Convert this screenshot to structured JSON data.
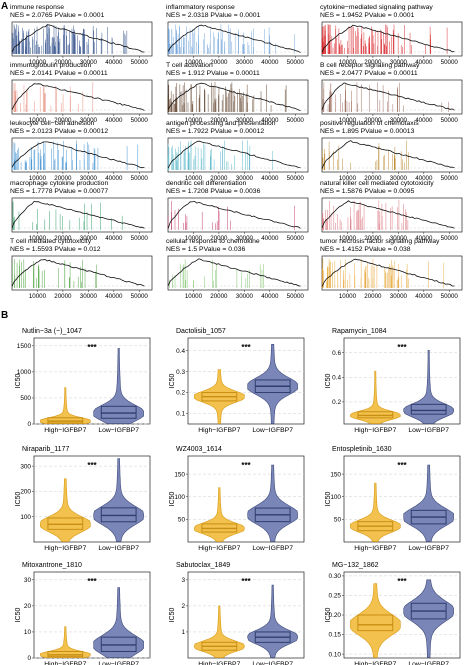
{
  "figure": {
    "panel_a_label": "A",
    "panel_b_label": "B",
    "colors": {
      "curve": "#111111",
      "frame": "#222222",
      "grid": "#cfcfcf",
      "high": "#f2c14e",
      "high_dark": "#d99a16",
      "low": "#7b86b8",
      "low_dark": "#3e4a7a",
      "box_high": "#c98f12",
      "box_low": "#2f3e6e",
      "text": "#111111"
    }
  },
  "gsea_panels": [
    {
      "title": "immune response",
      "stats": "NES = 2.0765   PValue = 0.0001",
      "color": "#2f4e8a",
      "peak_x": 14000,
      "n_hits": 120
    },
    {
      "title": "inflammatory response",
      "stats": "NES = 2.0318   PValue = 0.0001",
      "color": "#6fa2d8",
      "peak_x": 13000,
      "n_hits": 90
    },
    {
      "title": "cytokine−mediated signaling pathway",
      "stats": "NES = 1.9452   PValue = 0.0001",
      "color": "#d9262b",
      "peak_x": 12500,
      "n_hits": 100
    },
    {
      "title": "immunoglobulin production",
      "stats": "NES = 2.0141   PValue = 0.00011",
      "color": "#e58a78",
      "peak_x": 9000,
      "n_hits": 28
    },
    {
      "title": "T cell activation",
      "stats": "NES = 1.912   PValue = 0.00011",
      "color": "#5a3a22",
      "peak_x": 12500,
      "n_hits": 80
    },
    {
      "title": "B cell receptor signaling pathway",
      "stats": "NES = 2.0477   PValue = 0.00011",
      "color": "#9a6a5a",
      "peak_x": 8500,
      "n_hits": 40
    },
    {
      "title": "leukocyte cell−cell adhesion",
      "stats": "NES = 2.0123   PValue = 0.00012",
      "color": "#3a8ed0",
      "peak_x": 12500,
      "n_hits": 60
    },
    {
      "title": "antigen processing and presentation",
      "stats": "NES = 1.7922   PValue = 0.00012",
      "color": "#55b6c8",
      "peak_x": 12000,
      "n_hits": 55
    },
    {
      "title": "positive regulation of chemotaxis",
      "stats": "NES = 1.895   PValue = 0.00013",
      "color": "#b8862a",
      "peak_x": 11000,
      "n_hits": 30
    },
    {
      "title": "macrophage cytokine production",
      "stats": "NES = 1.7778   PValue = 0.00077",
      "color": "#2a9b62",
      "peak_x": 9000,
      "n_hits": 22
    },
    {
      "title": "dendritic cell differentiation",
      "stats": "NES = 1.7208   PValue = 0.0036",
      "color": "#c23363",
      "peak_x": 9000,
      "n_hits": 18
    },
    {
      "title": "natural killer cell mediated cytotoxicity",
      "stats": "NES = 1.5876   PValue = 0.0095",
      "color": "#d96f7a",
      "peak_x": 10000,
      "n_hits": 45
    },
    {
      "title": "T cell mediated cytotoxicity",
      "stats": "NES = 1.5593   PValue = 0.012",
      "color": "#4aa23a",
      "peak_x": 12000,
      "n_hits": 35
    },
    {
      "title": "cellular response to chemokine",
      "stats": "NES = 1.5   PValue = 0.036",
      "color": "#7cc26a",
      "peak_x": 12000,
      "n_hits": 25
    },
    {
      "title": "tumor necrosis factor signaling pathway",
      "stats": "NES = 1.4152   PValue = 0.038",
      "color": "#e8a93a",
      "peak_x": 13000,
      "n_hits": 70
    }
  ],
  "gsea_axis_ticks": [
    "10000",
    "20000",
    "30000",
    "40000",
    "50000"
  ],
  "drug_panels": [
    {
      "title": "Nutlin−3a (−)_1047",
      "sig": "***",
      "yticks": [
        "0",
        "500",
        "1000",
        "1500"
      ],
      "ylim": [
        0,
        1650
      ],
      "high": {
        "median": 55,
        "q1": 20,
        "q3": 120,
        "max": 700
      },
      "low": {
        "median": 210,
        "q1": 110,
        "q3": 340,
        "max": 1450
      }
    },
    {
      "title": "Dactolisib_1057",
      "sig": "***",
      "yticks": [
        "0.1",
        "0.2",
        "0.3",
        "0.4"
      ],
      "ylim": [
        0.05,
        0.46
      ],
      "high": {
        "median": 0.18,
        "q1": 0.16,
        "q3": 0.2,
        "max": 0.31
      },
      "low": {
        "median": 0.23,
        "q1": 0.2,
        "q3": 0.26,
        "max": 0.43
      }
    },
    {
      "title": "Rapamycin_1084",
      "sig": "***",
      "yticks": [
        "0.2",
        "0.4",
        "0.6"
      ],
      "ylim": [
        0.02,
        0.72
      ],
      "high": {
        "median": 0.09,
        "q1": 0.07,
        "q3": 0.12,
        "max": 0.45
      },
      "low": {
        "median": 0.13,
        "q1": 0.1,
        "q3": 0.18,
        "max": 0.62
      }
    },
    {
      "title": "Niraparib_1177",
      "sig": "***",
      "yticks": [
        "100",
        "200",
        "300"
      ],
      "ylim": [
        0,
        340
      ],
      "high": {
        "median": 70,
        "q1": 50,
        "q3": 95,
        "max": 250
      },
      "low": {
        "median": 105,
        "q1": 80,
        "q3": 135,
        "max": 330
      }
    },
    {
      "title": "WZ4003_1614",
      "sig": "***",
      "yticks": [
        "50",
        "100",
        "150"
      ],
      "ylim": [
        0,
        190
      ],
      "high": {
        "median": 30,
        "q1": 22,
        "q3": 40,
        "max": 120
      },
      "low": {
        "median": 60,
        "q1": 45,
        "q3": 75,
        "max": 170
      }
    },
    {
      "title": "Entospletinib_1630",
      "sig": "***",
      "yticks": [
        "50",
        "100",
        "150"
      ],
      "ylim": [
        0,
        190
      ],
      "high": {
        "median": 35,
        "q1": 25,
        "q3": 45,
        "max": 130
      },
      "low": {
        "median": 55,
        "q1": 40,
        "q3": 70,
        "max": 170
      }
    },
    {
      "title": "Mitoxantrone_1810",
      "sig": "***",
      "yticks": [
        "0",
        "10",
        "20",
        "30"
      ],
      "ylim": [
        0,
        33
      ],
      "high": {
        "median": 1.2,
        "q1": 0.5,
        "q3": 2.5,
        "max": 12
      },
      "low": {
        "median": 5,
        "q1": 2.5,
        "q3": 8,
        "max": 27
      }
    },
    {
      "title": "Sabutoclax_1849",
      "sig": "***",
      "yticks": [
        "1",
        "2",
        "3"
      ],
      "ylim": [
        0,
        3.3
      ],
      "high": {
        "median": 0.45,
        "q1": 0.3,
        "q3": 0.6,
        "max": 2
      },
      "low": {
        "median": 0.8,
        "q1": 0.6,
        "q3": 1,
        "max": 2.8
      }
    },
    {
      "title": "MG−132_1862",
      "sig": "***",
      "yticks": [
        "0.10",
        "0.15",
        "0.20",
        "0.25",
        "0.30"
      ],
      "ylim": [
        0.09,
        0.31
      ],
      "high": {
        "median": 0.175,
        "q1": 0.16,
        "q3": 0.2,
        "max": 0.28
      },
      "low": {
        "median": 0.21,
        "q1": 0.19,
        "q3": 0.23,
        "max": 0.29
      }
    }
  ],
  "drug_axis": {
    "ylabel": "IC50",
    "group_high": "High−IGFBP7",
    "group_low": "Low−IGFBP7"
  }
}
